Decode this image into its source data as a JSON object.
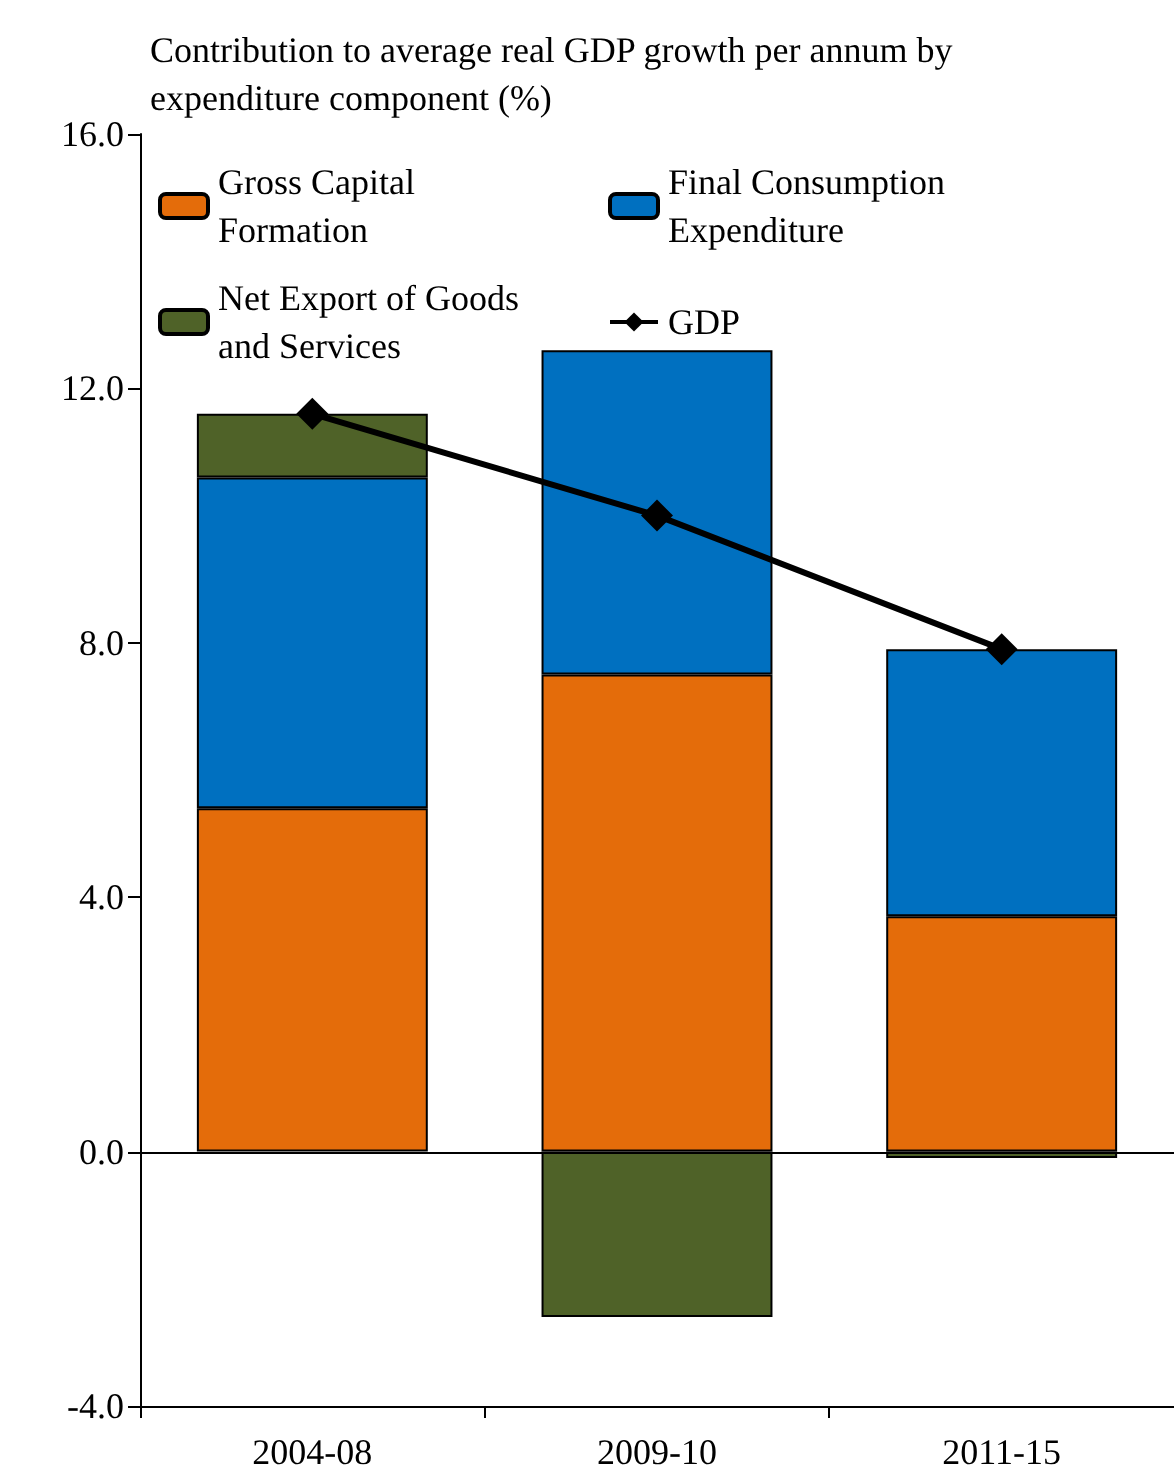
{
  "chart_data": {
    "type": "bar",
    "stacked": true,
    "title": "Contribution to average real GDP growth per annum by expenditure component (%)",
    "categories": [
      "2004-08",
      "2009-10",
      "2011-15"
    ],
    "series": [
      {
        "name": "Gross Capital Formation",
        "color": "#e46c0a",
        "values": [
          5.4,
          7.5,
          3.7
        ]
      },
      {
        "name": "Final Consumption Expenditure",
        "color": "#0070c0",
        "values": [
          5.2,
          5.1,
          4.2
        ]
      },
      {
        "name": "Net Export of Goods and Services",
        "color": "#4f6228",
        "values": [
          1.0,
          -2.6,
          -0.1
        ]
      },
      {
        "name": "GDP",
        "type": "line",
        "color": "#000000",
        "marker": "diamond",
        "values": [
          11.6,
          10.0,
          7.9
        ]
      }
    ],
    "ylim": [
      -4,
      16
    ],
    "yticks": [
      {
        "value": -4,
        "label": "-4.0"
      },
      {
        "value": 0,
        "label": "0.0"
      },
      {
        "value": 4,
        "label": "4.0"
      },
      {
        "value": 8,
        "label": "8.0"
      },
      {
        "value": 12,
        "label": "12.0"
      },
      {
        "value": 16,
        "label": "16.0"
      }
    ],
    "ref_lines": [
      {
        "axis": "y",
        "value": 0,
        "color": "#000000"
      }
    ],
    "grid": false,
    "legend": "top"
  }
}
